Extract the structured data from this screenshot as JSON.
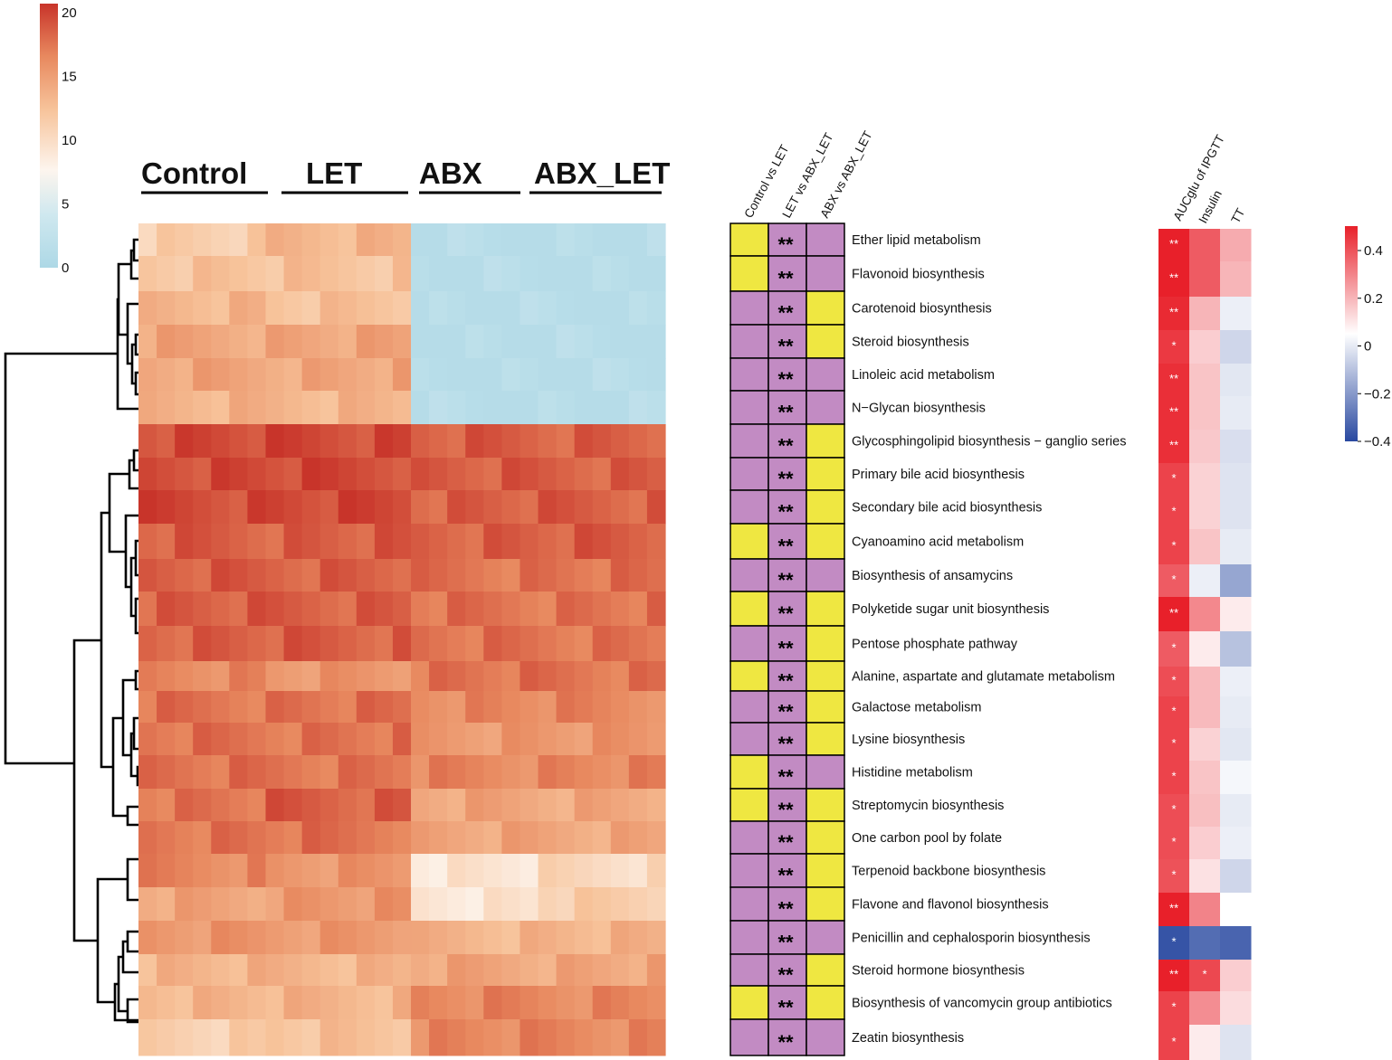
{
  "chart_data": {
    "type": "heatmap",
    "groups": [
      "Control",
      "LET",
      "ABX",
      "ABX_LET"
    ],
    "pathways": [
      "Ether lipid metabolism",
      "Flavonoid biosynthesis",
      "Carotenoid biosynthesis",
      "Steroid biosynthesis",
      "Linoleic acid metabolism",
      "N−Glycan biosynthesis",
      "Glycosphingolipid biosynthesis − ganglio series",
      "Primary bile acid biosynthesis",
      "Secondary bile acid biosynthesis",
      "Cyanoamino acid metabolism",
      "Biosynthesis of ansamycins",
      "Polyketide sugar unit biosynthesis",
      "Pentose phosphate pathway",
      "Alanine, aspartate and glutamate metabolism",
      "Galactose metabolism",
      "Lysine biosynthesis",
      "Histidine metabolism",
      "Streptomycin biosynthesis",
      "One carbon pool by folate",
      "Terpenoid backbone biosynthesis",
      "Flavone and flavonol biosynthesis",
      "Penicillin and cephalosporin biosynthesis",
      "Steroid hormone biosynthesis",
      "Biosynthesis of vancomycin group antibiotics",
      "Zeatin biosynthesis"
    ],
    "abundance_legend": {
      "ticks": [
        "0",
        "5",
        "10",
        "15",
        "20"
      ],
      "range": [
        0,
        20
      ]
    },
    "group_means": [
      [
        11,
        13,
        1,
        1
      ],
      [
        12,
        12,
        1,
        1
      ],
      [
        13,
        12,
        1,
        1
      ],
      [
        14,
        14,
        1,
        1
      ],
      [
        14,
        14,
        1,
        1
      ],
      [
        13,
        13,
        1,
        1
      ],
      [
        19,
        19,
        18,
        18
      ],
      [
        19,
        19,
        18,
        18
      ],
      [
        19,
        19,
        18,
        18
      ],
      [
        18,
        18,
        18,
        18
      ],
      [
        18,
        18,
        17,
        17
      ],
      [
        18,
        18,
        17,
        17
      ],
      [
        18,
        18,
        17,
        17
      ],
      [
        16,
        15,
        17,
        17
      ],
      [
        17,
        17,
        16,
        16
      ],
      [
        17,
        17,
        15,
        15
      ],
      [
        17,
        17,
        16,
        16
      ],
      [
        17,
        18,
        14,
        14
      ],
      [
        17,
        17,
        14,
        14
      ],
      [
        16,
        15,
        9,
        10
      ],
      [
        14,
        15,
        9,
        11
      ],
      [
        15,
        15,
        13,
        13
      ],
      [
        13,
        13,
        14,
        14
      ],
      [
        13,
        13,
        16,
        16
      ],
      [
        11,
        12,
        16,
        16
      ]
    ],
    "comparison_headers": [
      "Control vs LET",
      "LET vs ABX_LET",
      "ABX vs ABX_LET"
    ],
    "comparison_colors": {
      "Y": "#efe741",
      "P": "#c28bc3"
    },
    "comparisons": [
      [
        "Y",
        "P",
        "P"
      ],
      [
        "Y",
        "P",
        "P"
      ],
      [
        "P",
        "P",
        "Y"
      ],
      [
        "P",
        "P",
        "Y"
      ],
      [
        "P",
        "P",
        "P"
      ],
      [
        "P",
        "P",
        "P"
      ],
      [
        "P",
        "P",
        "Y"
      ],
      [
        "P",
        "P",
        "Y"
      ],
      [
        "P",
        "P",
        "Y"
      ],
      [
        "Y",
        "P",
        "Y"
      ],
      [
        "P",
        "P",
        "P"
      ],
      [
        "Y",
        "P",
        "Y"
      ],
      [
        "P",
        "P",
        "Y"
      ],
      [
        "Y",
        "P",
        "Y"
      ],
      [
        "P",
        "P",
        "Y"
      ],
      [
        "P",
        "P",
        "Y"
      ],
      [
        "Y",
        "P",
        "P"
      ],
      [
        "Y",
        "P",
        "Y"
      ],
      [
        "P",
        "P",
        "Y"
      ],
      [
        "P",
        "P",
        "Y"
      ],
      [
        "P",
        "P",
        "Y"
      ],
      [
        "P",
        "P",
        "P"
      ],
      [
        "P",
        "P",
        "Y"
      ],
      [
        "Y",
        "P",
        "Y"
      ],
      [
        "P",
        "P",
        "P"
      ]
    ],
    "comparison_mark": "**",
    "correlation_headers": [
      "AUCglu of IPGTT",
      "Insulin",
      "TT"
    ],
    "correlation_legend": {
      "ticks": [
        "0.4",
        "0.2",
        "0",
        "−0.2",
        "−0.4"
      ],
      "range": [
        -0.4,
        0.4
      ]
    },
    "correlations": [
      [
        0.45,
        0.33,
        0.17
      ],
      [
        0.45,
        0.33,
        0.15
      ],
      [
        0.43,
        0.15,
        -0.04
      ],
      [
        0.4,
        0.1,
        -0.1
      ],
      [
        0.42,
        0.12,
        -0.06
      ],
      [
        0.42,
        0.12,
        -0.05
      ],
      [
        0.42,
        0.11,
        -0.08
      ],
      [
        0.38,
        0.09,
        -0.07
      ],
      [
        0.38,
        0.09,
        -0.07
      ],
      [
        0.38,
        0.12,
        -0.05
      ],
      [
        0.33,
        -0.04,
        -0.22
      ],
      [
        0.45,
        0.24,
        0.04
      ],
      [
        0.33,
        0.04,
        -0.15
      ],
      [
        0.36,
        0.14,
        -0.04
      ],
      [
        0.38,
        0.14,
        -0.05
      ],
      [
        0.38,
        0.09,
        -0.06
      ],
      [
        0.38,
        0.12,
        -0.02
      ],
      [
        0.36,
        0.13,
        -0.05
      ],
      [
        0.36,
        0.1,
        -0.04
      ],
      [
        0.35,
        0.06,
        -0.1
      ],
      [
        0.45,
        0.25,
        0.0
      ],
      [
        -0.42,
        -0.36,
        -0.38
      ],
      [
        0.45,
        0.37,
        0.1
      ],
      [
        0.38,
        0.23,
        0.07
      ],
      [
        0.38,
        0.04,
        -0.07
      ]
    ],
    "correlation_marks": [
      [
        "**",
        "",
        ""
      ],
      [
        "**",
        "",
        ""
      ],
      [
        "**",
        "",
        ""
      ],
      [
        "*",
        "",
        ""
      ],
      [
        "**",
        "",
        ""
      ],
      [
        "**",
        "",
        ""
      ],
      [
        "**",
        "",
        ""
      ],
      [
        "*",
        "",
        ""
      ],
      [
        "*",
        "",
        ""
      ],
      [
        "*",
        "",
        ""
      ],
      [
        "*",
        "",
        ""
      ],
      [
        "**",
        "",
        ""
      ],
      [
        "*",
        "",
        ""
      ],
      [
        "*",
        "",
        ""
      ],
      [
        "*",
        "",
        ""
      ],
      [
        "*",
        "",
        ""
      ],
      [
        "*",
        "",
        ""
      ],
      [
        "*",
        "",
        ""
      ],
      [
        "*",
        "",
        ""
      ],
      [
        "*",
        "",
        ""
      ],
      [
        "**",
        "",
        ""
      ],
      [
        "*",
        "",
        ""
      ],
      [
        "**",
        "*",
        ""
      ],
      [
        "*",
        "",
        ""
      ],
      [
        "*",
        "",
        ""
      ]
    ],
    "colors": {
      "abundance_low": "#add8e6",
      "abundance_mid": "#fdf5ee",
      "abundance_high": "#c8342a",
      "corr_neg": "#2848a0",
      "corr_zero": "#ffffff",
      "corr_pos": "#e8202a"
    }
  }
}
